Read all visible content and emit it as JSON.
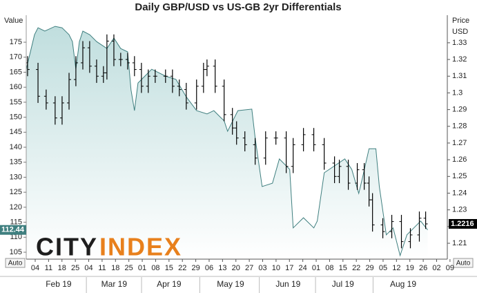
{
  "chart_data": {
    "type": "combo",
    "title": "Daily GBP/USD vs US-GB 2yr Differentials",
    "y_label": "Value",
    "y2_label": "Price",
    "y2_unit": "USD",
    "watermark": [
      "CITY",
      "INDEX"
    ],
    "axis_buttons": [
      "Auto",
      "Auto"
    ],
    "xlim": [
      -0.67,
      30.8
    ],
    "xticks": [
      {
        "value": 0,
        "label": "04"
      },
      {
        "value": 1,
        "label": "11"
      },
      {
        "value": 2,
        "label": "18"
      },
      {
        "value": 3,
        "label": "25"
      },
      {
        "value": 4,
        "label": "04"
      },
      {
        "value": 5,
        "label": "11"
      },
      {
        "value": 6,
        "label": "18"
      },
      {
        "value": 7,
        "label": "25"
      },
      {
        "value": 8,
        "label": "01"
      },
      {
        "value": 9,
        "label": "08"
      },
      {
        "value": 10,
        "label": "15"
      },
      {
        "value": 11,
        "label": "22"
      },
      {
        "value": 12,
        "label": "29"
      },
      {
        "value": 13,
        "label": "06"
      },
      {
        "value": 14,
        "label": "13"
      },
      {
        "value": 15,
        "label": "20"
      },
      {
        "value": 16,
        "label": "27"
      },
      {
        "value": 17,
        "label": "03"
      },
      {
        "value": 18,
        "label": "10"
      },
      {
        "value": 19,
        "label": "17"
      },
      {
        "value": 20,
        "label": "24"
      },
      {
        "value": 21,
        "label": "01"
      },
      {
        "value": 22,
        "label": "08"
      },
      {
        "value": 23,
        "label": "15"
      },
      {
        "value": 24,
        "label": "22"
      },
      {
        "value": 25,
        "label": "29"
      },
      {
        "value": 26,
        "label": "05"
      },
      {
        "value": 27,
        "label": "12"
      },
      {
        "value": 28,
        "label": "19"
      },
      {
        "value": 29,
        "label": "26"
      },
      {
        "value": 30,
        "label": "02"
      },
      {
        "value": 31,
        "label": "09"
      }
    ],
    "month_labels": [
      {
        "value": 1.75,
        "label": "Feb 19"
      },
      {
        "value": 5.9,
        "label": "Mar 19"
      },
      {
        "value": 10,
        "label": "Apr 19"
      },
      {
        "value": 14.6,
        "label": "May 19"
      },
      {
        "value": 18.9,
        "label": "Jun 19"
      },
      {
        "value": 23,
        "label": "Jul 19"
      },
      {
        "value": 27.5,
        "label": "Aug 19"
      }
    ],
    "ylim": [
      102.7,
      184
    ],
    "yticks": [
      105,
      110,
      115,
      120,
      125,
      130,
      135,
      140,
      145,
      150,
      155,
      160,
      165,
      170,
      175
    ],
    "y2lim": [
      1.2005,
      1.3465
    ],
    "y2ticks": [
      1.21,
      1.22,
      1.23,
      1.24,
      1.25,
      1.26,
      1.27,
      1.28,
      1.29,
      1.3,
      1.31,
      1.32,
      1.33
    ],
    "series": [
      {
        "type": "area",
        "color": "#3f7f7f",
        "fill": "#c7e2e2",
        "x": [
          -0.67,
          -0.05,
          0.21,
          0.72,
          1.49,
          2.01,
          2.53,
          2.78,
          3.04,
          3.3,
          3.56,
          4.07,
          4.59,
          5.36,
          5.88,
          6.39,
          6.91,
          7.16,
          7.42,
          7.68,
          8.2,
          8.71,
          9.74,
          10.52,
          11.29,
          12.06,
          12.84,
          13.35,
          13.87,
          14.12,
          14.38,
          15.15,
          16.19,
          16.44,
          16.96,
          17.73,
          18.25,
          19.02,
          19.28,
          20.05,
          20.82,
          21.08,
          21.6,
          22.37,
          23.14,
          23.66,
          24.18,
          24.43,
          24.95,
          25.46,
          25.72,
          26.24,
          26.75,
          27.27,
          27.78,
          28.3,
          28.81,
          29.33
        ],
        "values": [
          166,
          177.5,
          179.8,
          178.7,
          180.3,
          179.8,
          177.5,
          175.2,
          166,
          175.2,
          178.7,
          177.5,
          175.2,
          172.9,
          176.4,
          172.9,
          171.8,
          159.1,
          152.2,
          161.4,
          163.7,
          166,
          163.7,
          162.6,
          156.8,
          152.2,
          151.1,
          152.2,
          149.9,
          148.8,
          145.3,
          152.2,
          152.7,
          143,
          126.9,
          128,
          136.1,
          132.6,
          113.1,
          116.5,
          113.1,
          115.4,
          131.5,
          133.8,
          136.1,
          132.6,
          124.6,
          129.2,
          139.5,
          139.5,
          126.9,
          110.8,
          113.1,
          103.9,
          110.8,
          113.1,
          115.4,
          112.44
        ]
      },
      {
        "type": "ohlc",
        "axis": "y2",
        "color": "#000000",
        "x": [
          -0.57,
          0.21,
          0.82,
          1.49,
          2.01,
          2.53,
          3.04,
          3.56,
          4.07,
          4.59,
          5.1,
          5.36,
          5.88,
          6.39,
          6.91,
          7.42,
          7.94,
          8.45,
          8.97,
          9.74,
          10.26,
          10.77,
          11.29,
          12.06,
          12.58,
          12.84,
          13.45,
          14.12,
          14.74,
          15.05,
          15.67,
          16.44,
          17.22,
          17.99,
          18.76,
          19.28,
          20.05,
          20.82,
          21.6,
          22.37,
          22.73,
          23.4,
          24.07,
          24.59,
          24.95,
          25.21,
          25.98,
          26.65,
          27.37,
          28.04,
          28.71,
          29.18
        ],
        "open": [
          1.318,
          1.314,
          1.298,
          1.294,
          1.285,
          1.294,
          1.308,
          1.318,
          1.327,
          1.316,
          1.31,
          1.312,
          1.331,
          1.32,
          1.32,
          1.318,
          1.314,
          1.304,
          1.31,
          1.31,
          1.31,
          1.304,
          1.302,
          1.294,
          1.304,
          1.314,
          1.316,
          1.304,
          1.287,
          1.279,
          1.273,
          1.269,
          1.261,
          1.273,
          1.273,
          1.256,
          1.269,
          1.275,
          1.269,
          1.258,
          1.25,
          1.256,
          1.246,
          1.254,
          1.246,
          1.236,
          1.221,
          1.217,
          1.223,
          1.211,
          1.215,
          1.225
        ],
        "high": [
          1.322,
          1.318,
          1.302,
          1.298,
          1.298,
          1.312,
          1.322,
          1.331,
          1.331,
          1.32,
          1.316,
          1.335,
          1.335,
          1.324,
          1.324,
          1.322,
          1.318,
          1.314,
          1.314,
          1.314,
          1.314,
          1.308,
          1.306,
          1.308,
          1.318,
          1.32,
          1.32,
          1.308,
          1.291,
          1.283,
          1.277,
          1.273,
          1.277,
          1.277,
          1.277,
          1.273,
          1.279,
          1.279,
          1.273,
          1.262,
          1.26,
          1.26,
          1.258,
          1.258,
          1.25,
          1.24,
          1.225,
          1.227,
          1.227,
          1.219,
          1.229,
          1.229
        ],
        "low": [
          1.31,
          1.294,
          1.29,
          1.281,
          1.281,
          1.29,
          1.304,
          1.314,
          1.312,
          1.306,
          1.306,
          1.308,
          1.316,
          1.316,
          1.314,
          1.31,
          1.3,
          1.3,
          1.306,
          1.306,
          1.3,
          1.298,
          1.29,
          1.29,
          1.3,
          1.31,
          1.3,
          1.283,
          1.275,
          1.269,
          1.265,
          1.257,
          1.257,
          1.269,
          1.252,
          1.252,
          1.265,
          1.265,
          1.254,
          1.246,
          1.246,
          1.242,
          1.242,
          1.242,
          1.232,
          1.217,
          1.213,
          1.213,
          1.207,
          1.207,
          1.211,
          1.2186
        ],
        "close": [
          1.314,
          1.298,
          1.294,
          1.285,
          1.294,
          1.308,
          1.318,
          1.327,
          1.316,
          1.31,
          1.312,
          1.331,
          1.32,
          1.32,
          1.318,
          1.314,
          1.304,
          1.31,
          1.31,
          1.31,
          1.304,
          1.302,
          1.294,
          1.304,
          1.314,
          1.316,
          1.304,
          1.287,
          1.279,
          1.273,
          1.269,
          1.261,
          1.273,
          1.273,
          1.256,
          1.269,
          1.275,
          1.269,
          1.258,
          1.25,
          1.256,
          1.246,
          1.254,
          1.246,
          1.236,
          1.221,
          1.217,
          1.223,
          1.211,
          1.215,
          1.225,
          1.2216
        ]
      }
    ]
  }
}
